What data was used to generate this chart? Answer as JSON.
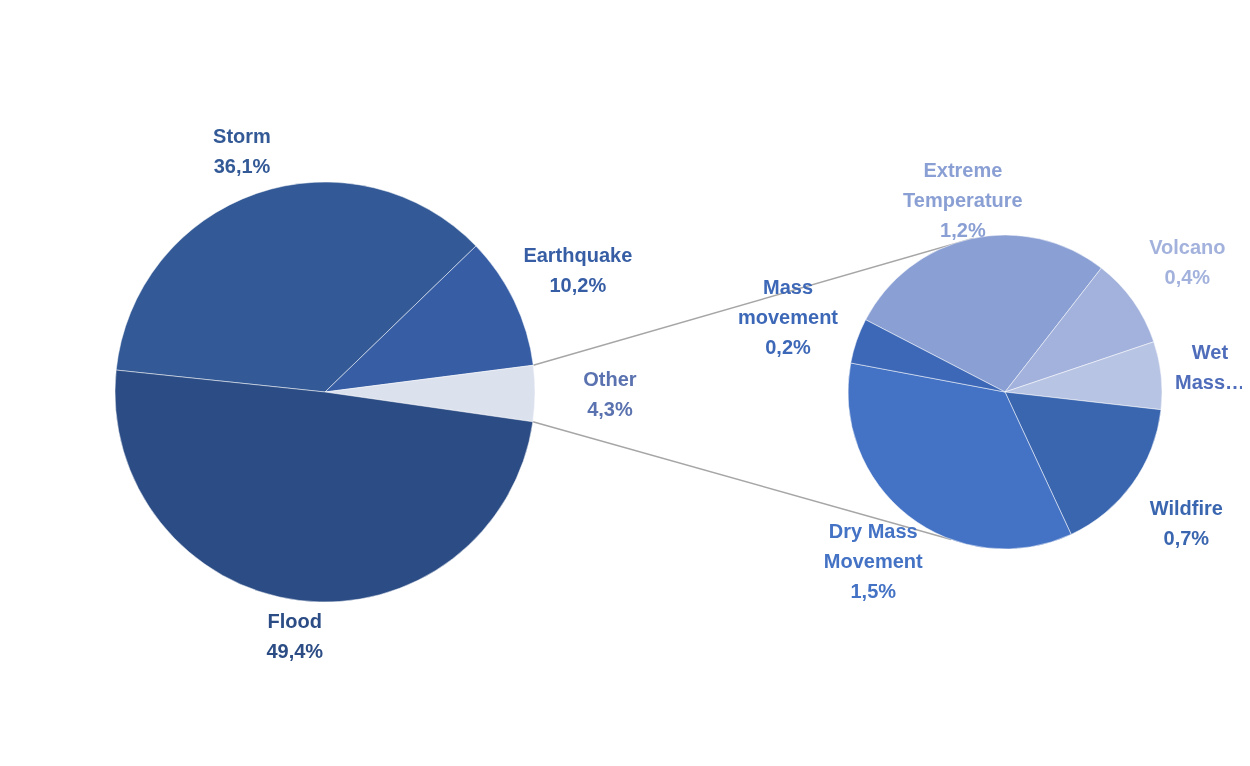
{
  "chart_data": [
    {
      "type": "pie",
      "categories": [
        "Storm",
        "Earthquake",
        "Other",
        "Flood"
      ],
      "values": [
        36.1,
        10.2,
        4.3,
        49.4
      ],
      "value_labels": [
        "36,1%",
        "10,2%",
        "4,3%",
        "49,4%"
      ],
      "colors": [
        "#335a96",
        "#375ea5",
        "#dce1ee",
        "#2b4c84"
      ]
    },
    {
      "type": "pie",
      "categories": [
        "Extreme Temperature",
        "Volcano",
        "Wet Mass…",
        "Wildfire",
        "Dry Mass Movement",
        "Mass movement"
      ],
      "values": [
        1.2,
        0.4,
        0.3,
        0.7,
        1.5,
        0.2
      ],
      "value_labels": [
        "1,2%",
        "0,4%",
        null,
        "0,7%",
        "1,5%",
        "0,2%"
      ],
      "colors": [
        "#8a9fd3",
        "#a3b2dc",
        "#b8c4e3",
        "#3a66b0",
        "#4472c4",
        "#3d68b7"
      ]
    }
  ]
}
